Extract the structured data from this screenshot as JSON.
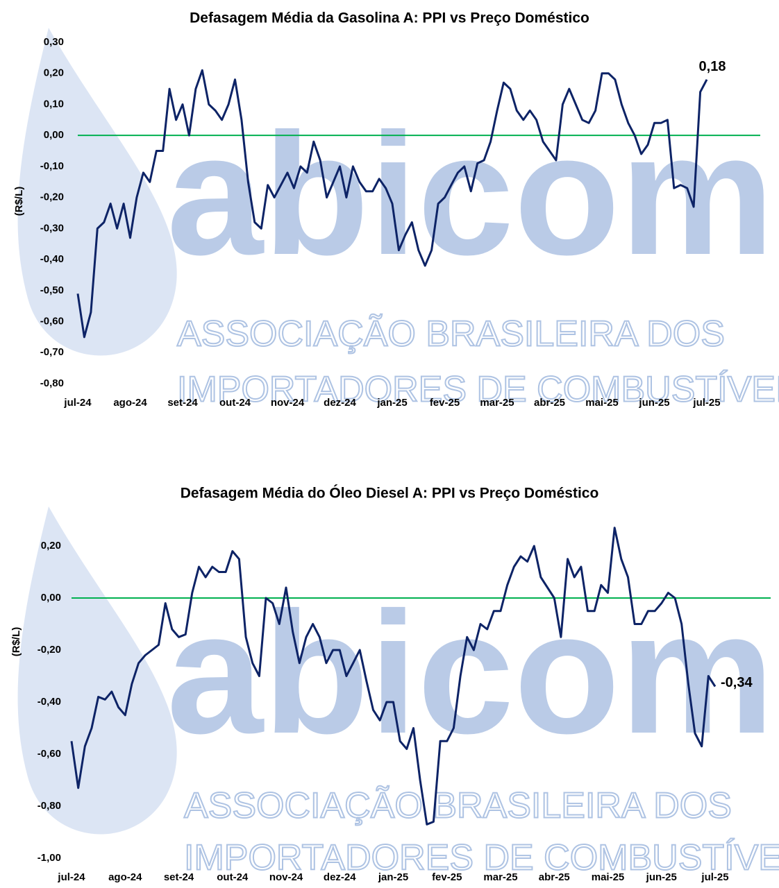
{
  "watermark": {
    "logo": "abicom",
    "lines": [
      "ASSOCIAÇÃO BRASILEIRA DOS",
      "IMPORTADORES DE COMBUSTÍVEIS"
    ]
  },
  "chart_data": [
    {
      "type": "line",
      "title": "Defasagem Média da Gasolina A: PPI vs Preço Doméstico",
      "y_label": "(R$/L)",
      "xlim": [
        0,
        96
      ],
      "xticks": [
        {
          "value": 0,
          "label": "jul-24"
        },
        {
          "value": 8,
          "label": "ago-24"
        },
        {
          "value": 16,
          "label": "set-24"
        },
        {
          "value": 24,
          "label": "out-24"
        },
        {
          "value": 32,
          "label": "nov-24"
        },
        {
          "value": 40,
          "label": "dez-24"
        },
        {
          "value": 48,
          "label": "jan-25"
        },
        {
          "value": 56,
          "label": "fev-25"
        },
        {
          "value": 64,
          "label": "mar-25"
        },
        {
          "value": 72,
          "label": "abr-25"
        },
        {
          "value": 80,
          "label": "mai-25"
        },
        {
          "value": 88,
          "label": "jun-25"
        },
        {
          "value": 96,
          "label": "jul-25"
        }
      ],
      "ylim": [
        -0.8,
        0.3
      ],
      "yticks": [
        {
          "value": 0.3,
          "label": "0,30"
        },
        {
          "value": 0.2,
          "label": "0,20"
        },
        {
          "value": 0.1,
          "label": "0,10"
        },
        {
          "value": 0,
          "label": "0,00"
        },
        {
          "value": -0.1,
          "label": "-0,10"
        },
        {
          "value": -0.2,
          "label": "-0,20"
        },
        {
          "value": -0.3,
          "label": "-0,30"
        },
        {
          "value": -0.4,
          "label": "-0,40"
        },
        {
          "value": -0.5,
          "label": "-0,50"
        },
        {
          "value": -0.6,
          "label": "-0,60"
        },
        {
          "value": -0.7,
          "label": "-0,70"
        },
        {
          "value": -0.8,
          "label": "-0,80"
        }
      ],
      "reference_line": {
        "value": 0,
        "color": "#00b050"
      },
      "series": [
        {
          "color": "#0d2366",
          "values": [
            -0.51,
            -0.65,
            -0.57,
            -0.3,
            -0.28,
            -0.22,
            -0.3,
            -0.22,
            -0.33,
            -0.2,
            -0.12,
            -0.15,
            -0.05,
            -0.05,
            0.15,
            0.05,
            0.1,
            0,
            0.15,
            0.21,
            0.1,
            0.08,
            0.05,
            0.1,
            0.18,
            0.05,
            -0.15,
            -0.28,
            -0.3,
            -0.16,
            -0.2,
            -0.16,
            -0.12,
            -0.17,
            -0.1,
            -0.12,
            -0.02,
            -0.08,
            -0.2,
            -0.15,
            -0.1,
            -0.2,
            -0.1,
            -0.15,
            -0.18,
            -0.18,
            -0.14,
            -0.17,
            -0.22,
            -0.37,
            -0.32,
            -0.28,
            -0.37,
            -0.42,
            -0.37,
            -0.22,
            -0.2,
            -0.16,
            -0.12,
            -0.1,
            -0.18,
            -0.09,
            -0.08,
            -0.02,
            0.08,
            0.17,
            0.15,
            0.08,
            0.05,
            0.08,
            0.05,
            -0.02,
            -0.05,
            -0.08,
            0.1,
            0.15,
            0.1,
            0.05,
            0.04,
            0.08,
            0.2,
            0.2,
            0.18,
            0.1,
            0.04,
            0,
            -0.06,
            -0.03,
            0.04,
            0.04,
            0.05,
            -0.17,
            -0.16,
            -0.17,
            -0.23,
            0.14,
            0.18
          ]
        }
      ],
      "annotation": {
        "text": "0,18",
        "color": "#00b050"
      }
    },
    {
      "type": "line",
      "title": "Defasagem Média do Óleo Diesel A: PPI vs Preço Doméstico",
      "y_label": "(R$/L)",
      "xlim": [
        0,
        96
      ],
      "xticks": [
        {
          "value": 0,
          "label": "jul-24"
        },
        {
          "value": 8,
          "label": "ago-24"
        },
        {
          "value": 16,
          "label": "set-24"
        },
        {
          "value": 24,
          "label": "out-24"
        },
        {
          "value": 32,
          "label": "nov-24"
        },
        {
          "value": 40,
          "label": "dez-24"
        },
        {
          "value": 48,
          "label": "jan-25"
        },
        {
          "value": 56,
          "label": "fev-25"
        },
        {
          "value": 64,
          "label": "mar-25"
        },
        {
          "value": 72,
          "label": "abr-25"
        },
        {
          "value": 80,
          "label": "mai-25"
        },
        {
          "value": 88,
          "label": "jun-25"
        },
        {
          "value": 96,
          "label": "jul-25"
        }
      ],
      "ylim": [
        -1.0,
        0.3
      ],
      "yticks": [
        {
          "value": 0.2,
          "label": "0,20"
        },
        {
          "value": 0,
          "label": "0,00"
        },
        {
          "value": -0.2,
          "label": "-0,20"
        },
        {
          "value": -0.4,
          "label": "-0,40"
        },
        {
          "value": -0.6,
          "label": "-0,60"
        },
        {
          "value": -0.8,
          "label": "-0,80"
        },
        {
          "value": -1.0,
          "label": "-1,00"
        }
      ],
      "reference_line": {
        "value": 0,
        "color": "#00b050"
      },
      "series": [
        {
          "color": "#0d2366",
          "values": [
            -0.55,
            -0.73,
            -0.57,
            -0.5,
            -0.38,
            -0.39,
            -0.36,
            -0.42,
            -0.45,
            -0.33,
            -0.25,
            -0.22,
            -0.2,
            -0.18,
            -0.02,
            -0.12,
            -0.15,
            -0.14,
            0.02,
            0.12,
            0.08,
            0.12,
            0.1,
            0.1,
            0.18,
            0.15,
            -0.15,
            -0.25,
            -0.3,
            0,
            -0.02,
            -0.1,
            0.04,
            -0.13,
            -0.25,
            -0.15,
            -0.1,
            -0.15,
            -0.25,
            -0.2,
            -0.2,
            -0.3,
            -0.25,
            -0.2,
            -0.32,
            -0.43,
            -0.47,
            -0.4,
            -0.4,
            -0.55,
            -0.58,
            -0.5,
            -0.7,
            -0.87,
            -0.86,
            -0.55,
            -0.55,
            -0.5,
            -0.3,
            -0.15,
            -0.2,
            -0.1,
            -0.12,
            -0.05,
            -0.05,
            0.05,
            0.12,
            0.16,
            0.14,
            0.2,
            0.08,
            0.04,
            0,
            -0.15,
            0.15,
            0.08,
            0.12,
            -0.05,
            -0.05,
            0.05,
            0.02,
            0.27,
            0.15,
            0.08,
            -0.1,
            -0.1,
            -0.05,
            -0.05,
            -0.02,
            0.02,
            0,
            -0.1,
            -0.33,
            -0.52,
            -0.57,
            -0.3,
            -0.34
          ]
        }
      ],
      "annotation": {
        "text": "-0,34",
        "color": "#e00000"
      }
    }
  ]
}
